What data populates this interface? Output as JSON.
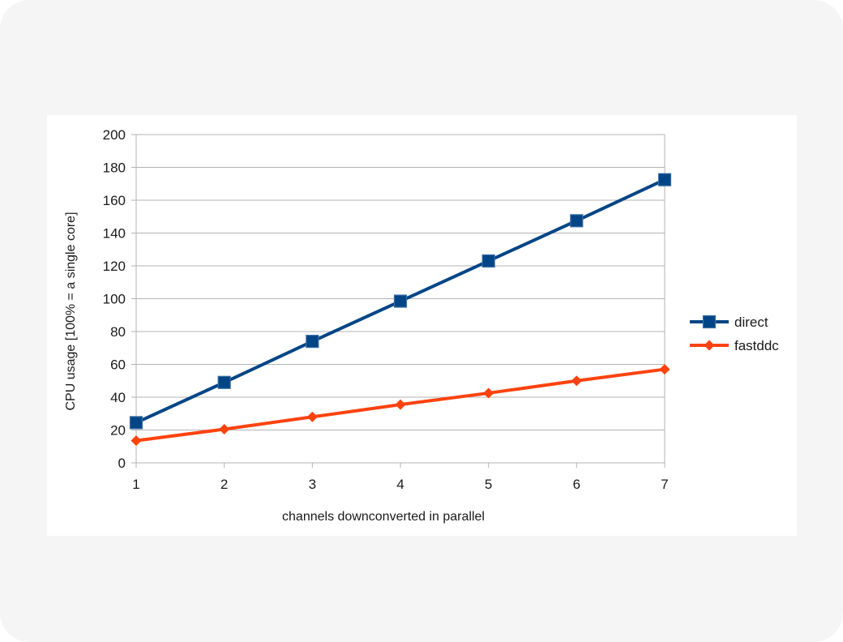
{
  "chart_data": {
    "type": "line",
    "title": "",
    "xlabel": "channels downconverted in parallel",
    "ylabel": "CPU usage [100% = a single core]",
    "x": [
      1,
      2,
      3,
      4,
      5,
      6,
      7
    ],
    "xlim": [
      1,
      7
    ],
    "ylim": [
      0,
      200
    ],
    "yticks": [
      0,
      20,
      40,
      60,
      80,
      100,
      120,
      140,
      160,
      180,
      200
    ],
    "grid": "horizontal",
    "legend_position": "right",
    "series": [
      {
        "name": "direct",
        "values": [
          24.5,
          49,
          74,
          98.5,
          123,
          147.5,
          172.5
        ],
        "color": "#004586",
        "marker": "square"
      },
      {
        "name": "fastddc",
        "values": [
          13.5,
          20.5,
          28,
          35.5,
          42.5,
          50,
          57
        ],
        "color": "#ff420e",
        "marker": "diamond"
      }
    ]
  }
}
